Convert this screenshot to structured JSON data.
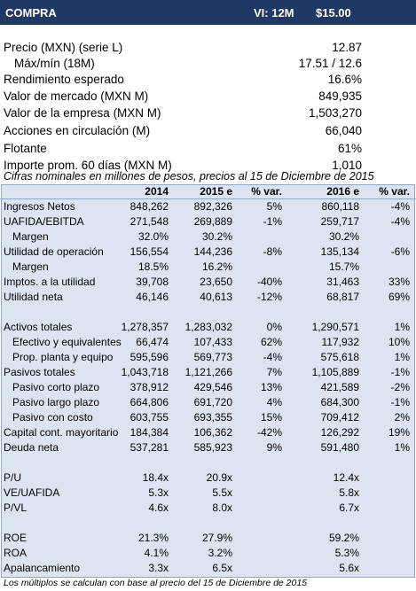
{
  "header": {
    "title": "COMPRA",
    "target_label": "VI: 12M",
    "target_price": "$15.00"
  },
  "summary": [
    {
      "label": "Precio (MXN) (serie L)",
      "value": "12.87"
    },
    {
      "label": "Máx/mín (18M)",
      "value": "17.51 / 12.6",
      "sub": true
    },
    {
      "label": "Rendimiento esperado",
      "value": "16.6%"
    },
    {
      "label": "Valor de mercado (MXN M)",
      "value": "849,935"
    },
    {
      "label": "Valor de la empresa (MXN M)",
      "value": "1,503,270"
    },
    {
      "label": "Acciones en circulación (M)",
      "value": "66,040"
    },
    {
      "label": "Flotante",
      "value": "61%"
    },
    {
      "label": "Importe prom. 60 días (MXN M)",
      "value": "1,010"
    }
  ],
  "note": "Cifras nominales en millones de pesos, precios al 15 de Diciembre de 2015",
  "table": {
    "columns": [
      "2014",
      "2015 e",
      "% var.",
      "2016 e",
      "% var."
    ],
    "groups": [
      [
        {
          "label": "Ingresos Netos",
          "cells": [
            "848,262",
            "892,326",
            "5%",
            "860,118",
            "-4%"
          ]
        },
        {
          "label": "UAFIDA/EBITDA",
          "cells": [
            "271,548",
            "269,889",
            "-1%",
            "259,717",
            "-4%"
          ]
        },
        {
          "label": "Margen",
          "sub": true,
          "cells": [
            "32.0%",
            "30.2%",
            null,
            "30.2%",
            null
          ]
        },
        {
          "label": "Utilidad de operación",
          "cells": [
            "156,554",
            "144,236",
            "-8%",
            "135,134",
            "-6%"
          ]
        },
        {
          "label": "Margen",
          "sub": true,
          "cells": [
            "18.5%",
            "16.2%",
            null,
            "15.7%",
            null
          ]
        },
        {
          "label": "Imptos. a la utilidad",
          "cells": [
            "39,708",
            "23,650",
            "-40%",
            "31,463",
            "33%"
          ]
        },
        {
          "label": "Utilidad neta",
          "cells": [
            "46,146",
            "40,613",
            "-12%",
            "68,817",
            "69%"
          ]
        }
      ],
      [
        {
          "label": "Activos totales",
          "cells": [
            "1,278,357",
            "1,283,032",
            "0%",
            "1,290,571",
            "1%"
          ]
        },
        {
          "label": "Efectivo y equivalentes",
          "sub": true,
          "cells": [
            "66,474",
            "107,433",
            "62%",
            "117,932",
            "10%"
          ]
        },
        {
          "label": "Prop. planta y equipo",
          "sub": true,
          "cells": [
            "595,596",
            "569,773",
            "-4%",
            "575,618",
            "1%"
          ]
        },
        {
          "label": "Pasivos totales",
          "cells": [
            "1,043,718",
            "1,121,266",
            "7%",
            "1,105,889",
            "-1%"
          ]
        },
        {
          "label": "Pasivo corto plazo",
          "sub": true,
          "cells": [
            "378,912",
            "429,546",
            "13%",
            "421,589",
            "-2%"
          ]
        },
        {
          "label": "Pasivo largo plazo",
          "sub": true,
          "cells": [
            "664,806",
            "691,720",
            "4%",
            "684,300",
            "-1%"
          ]
        },
        {
          "label": "Pasivo con costo",
          "sub": true,
          "cells": [
            "603,755",
            "693,355",
            "15%",
            "709,412",
            "2%"
          ]
        },
        {
          "label": "Capital cont. mayoritario",
          "cells": [
            "184,384",
            "106,362",
            "-42%",
            "126,292",
            "19%"
          ]
        },
        {
          "label": "Deuda neta",
          "cells": [
            "537,281",
            "585,923",
            "9%",
            "591,480",
            "1%"
          ]
        }
      ],
      [
        {
          "label": "P/U",
          "cells": [
            "18.4x",
            "20.9x",
            null,
            "12.4x",
            null
          ]
        },
        {
          "label": "VE/UAFIDA",
          "cells": [
            "5.3x",
            "5.5x",
            null,
            "5.8x",
            null
          ]
        },
        {
          "label": "P/VL",
          "cells": [
            "4.6x",
            "8.0x",
            null,
            "6.7x",
            null
          ]
        }
      ],
      [
        {
          "label": "ROE",
          "cells": [
            "21.3%",
            "27.9%",
            null,
            "59.2%",
            null
          ]
        },
        {
          "label": "ROA",
          "cells": [
            "4.1%",
            "3.2%",
            null,
            "5.3%",
            null
          ]
        },
        {
          "label": "Apalancamiento",
          "cells": [
            "3.3x",
            "6.5x",
            null,
            "5.6x",
            null
          ]
        }
      ]
    ]
  },
  "footnote": "Los múltiplos se calculan con base al precio del 15 de Diciembre de 2015"
}
